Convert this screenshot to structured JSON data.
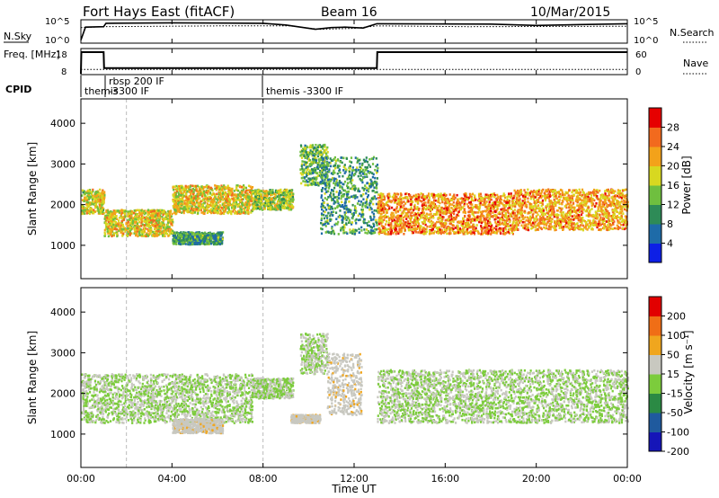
{
  "header": {
    "station": "Fort Hays East (fitACF)",
    "beam": "Beam 16",
    "date": "10/Mar/2015"
  },
  "colors": {
    "power_scale": [
      "#0d1fe6",
      "#1e6ba8",
      "#2e8b57",
      "#6fbf3f",
      "#d8d820",
      "#f3a21a",
      "#f26a1e",
      "#e60000"
    ],
    "velocity_scale": [
      "#1515b8",
      "#1f5a9e",
      "#2b8a44",
      "#7ccc3c",
      "#c8c8c0",
      "#f0a61e",
      "#f06e16",
      "#e20000"
    ]
  },
  "chart_data": [
    {
      "type": "line",
      "name": "noise",
      "left_label": "N.Sky",
      "right_label": "N.Search",
      "left_ticks": [
        "10^5",
        "10^0"
      ],
      "right_ticks": [
        "10^5",
        "10^0"
      ],
      "x_ticks": [
        "00:00",
        "04:00",
        "08:00",
        "12:00",
        "16:00",
        "20:00",
        "00:00"
      ],
      "xlim_hours": [
        0,
        24
      ],
      "sky_log10_level": [
        [
          0,
          0.5
        ],
        [
          0.2,
          3.5
        ],
        [
          1,
          3.6
        ],
        [
          1.1,
          4.4
        ],
        [
          4,
          4.5
        ],
        [
          8,
          4.4
        ],
        [
          9,
          4.0
        ],
        [
          10.3,
          3.0
        ],
        [
          11,
          3.4
        ],
        [
          11.6,
          3.5
        ],
        [
          12.4,
          3.3
        ],
        [
          13,
          4.3
        ],
        [
          18,
          4.2
        ],
        [
          20,
          3.9
        ],
        [
          22,
          4.1
        ],
        [
          24,
          4.3
        ]
      ],
      "search_log10_level": [
        [
          0,
          3.4
        ],
        [
          1,
          3.6
        ],
        [
          6,
          3.8
        ],
        [
          9.2,
          3.8
        ],
        [
          10.5,
          3.0
        ],
        [
          12,
          3.2
        ],
        [
          13,
          3.8
        ],
        [
          17,
          3.6
        ],
        [
          24,
          3.7
        ]
      ]
    },
    {
      "type": "line",
      "name": "frequency",
      "left_label": "Freq. [MHz]",
      "right_label": "Nave",
      "left_ticks": [
        "18",
        "8"
      ],
      "right_ticks": [
        "60",
        "0"
      ],
      "freq_mhz": [
        [
          0,
          8
        ],
        [
          0.02,
          18
        ],
        [
          1,
          18
        ],
        [
          1.02,
          10.6
        ],
        [
          13,
          10.6
        ],
        [
          13.02,
          18
        ],
        [
          24,
          18
        ]
      ],
      "nave": [
        [
          0,
          12
        ],
        [
          24,
          12
        ]
      ]
    },
    {
      "type": "table",
      "name": "cpid",
      "label": "CPID",
      "segments": [
        {
          "text": "themis",
          "start_hour": 0
        },
        {
          "text": "rbsp 200 IF",
          "start_hour": 1.1
        },
        {
          "text": "-3300 IF",
          "start_hour": 1.1
        },
        {
          "text": "themis -3300 IF",
          "start_hour": 8
        }
      ]
    },
    {
      "type": "heatmap",
      "name": "power",
      "ylabel": "Slant Range [km]",
      "yticks": [
        1000,
        2000,
        3000,
        4000
      ],
      "ylim": [
        180,
        4600
      ],
      "colorbar_label": "Power [dB]",
      "colorbar_ticks": [
        28,
        24,
        20,
        16,
        12,
        8,
        4
      ],
      "colorbar_range": [
        0,
        30
      ],
      "scatter_bands": [
        {
          "hours": [
            0,
            1
          ],
          "range_km": [
            1800,
            2400
          ],
          "db": 17
        },
        {
          "hours": [
            1,
            4
          ],
          "range_km": [
            1250,
            1900
          ],
          "db": 18
        },
        {
          "hours": [
            4,
            7.5
          ],
          "range_km": [
            1800,
            2500
          ],
          "db": 18
        },
        {
          "hours": [
            7.5,
            9.3
          ],
          "range_km": [
            1900,
            2400
          ],
          "db": 15
        },
        {
          "hours": [
            9.6,
            10.8
          ],
          "range_km": [
            2500,
            3500
          ],
          "db": 12
        },
        {
          "hours": [
            10.5,
            13
          ],
          "range_km": [
            1300,
            3200
          ],
          "db": 10
        },
        {
          "hours": [
            4,
            6.2
          ],
          "range_km": [
            1050,
            1350
          ],
          "db": 10
        },
        {
          "hours": [
            13,
            19
          ],
          "range_km": [
            1300,
            2300
          ],
          "db": 22
        },
        {
          "hours": [
            19,
            24
          ],
          "range_km": [
            1400,
            2400
          ],
          "db": 21
        }
      ]
    },
    {
      "type": "heatmap",
      "name": "velocity",
      "xlabel": "Time UT",
      "ylabel": "Slant Range [km]",
      "yticks": [
        1000,
        2000,
        3000,
        4000
      ],
      "ylim": [
        180,
        4600
      ],
      "colorbar_label": "Velocity [m s⁻¹]",
      "colorbar_ticks": [
        200,
        100,
        50,
        15,
        -15,
        -50,
        -100,
        -200
      ],
      "colorbar_range": [
        -250,
        250
      ],
      "scatter_bands": [
        {
          "hours": [
            0,
            7.5
          ],
          "range_km": [
            1300,
            2500
          ],
          "ms": 0
        },
        {
          "hours": [
            7.5,
            9.3
          ],
          "range_km": [
            1900,
            2400
          ],
          "ms": 0
        },
        {
          "hours": [
            9.6,
            10.8
          ],
          "range_km": [
            2500,
            3500
          ],
          "ms": 0
        },
        {
          "hours": [
            10.8,
            12.3
          ],
          "range_km": [
            1500,
            3000
          ],
          "ms": 40
        },
        {
          "hours": [
            4,
            6.2
          ],
          "range_km": [
            1050,
            1400
          ],
          "ms": 40
        },
        {
          "hours": [
            9.2,
            10.5
          ],
          "range_km": [
            1300,
            1500
          ],
          "ms": 40
        },
        {
          "hours": [
            13,
            24
          ],
          "range_km": [
            1300,
            2600
          ],
          "ms": 0
        }
      ]
    }
  ]
}
